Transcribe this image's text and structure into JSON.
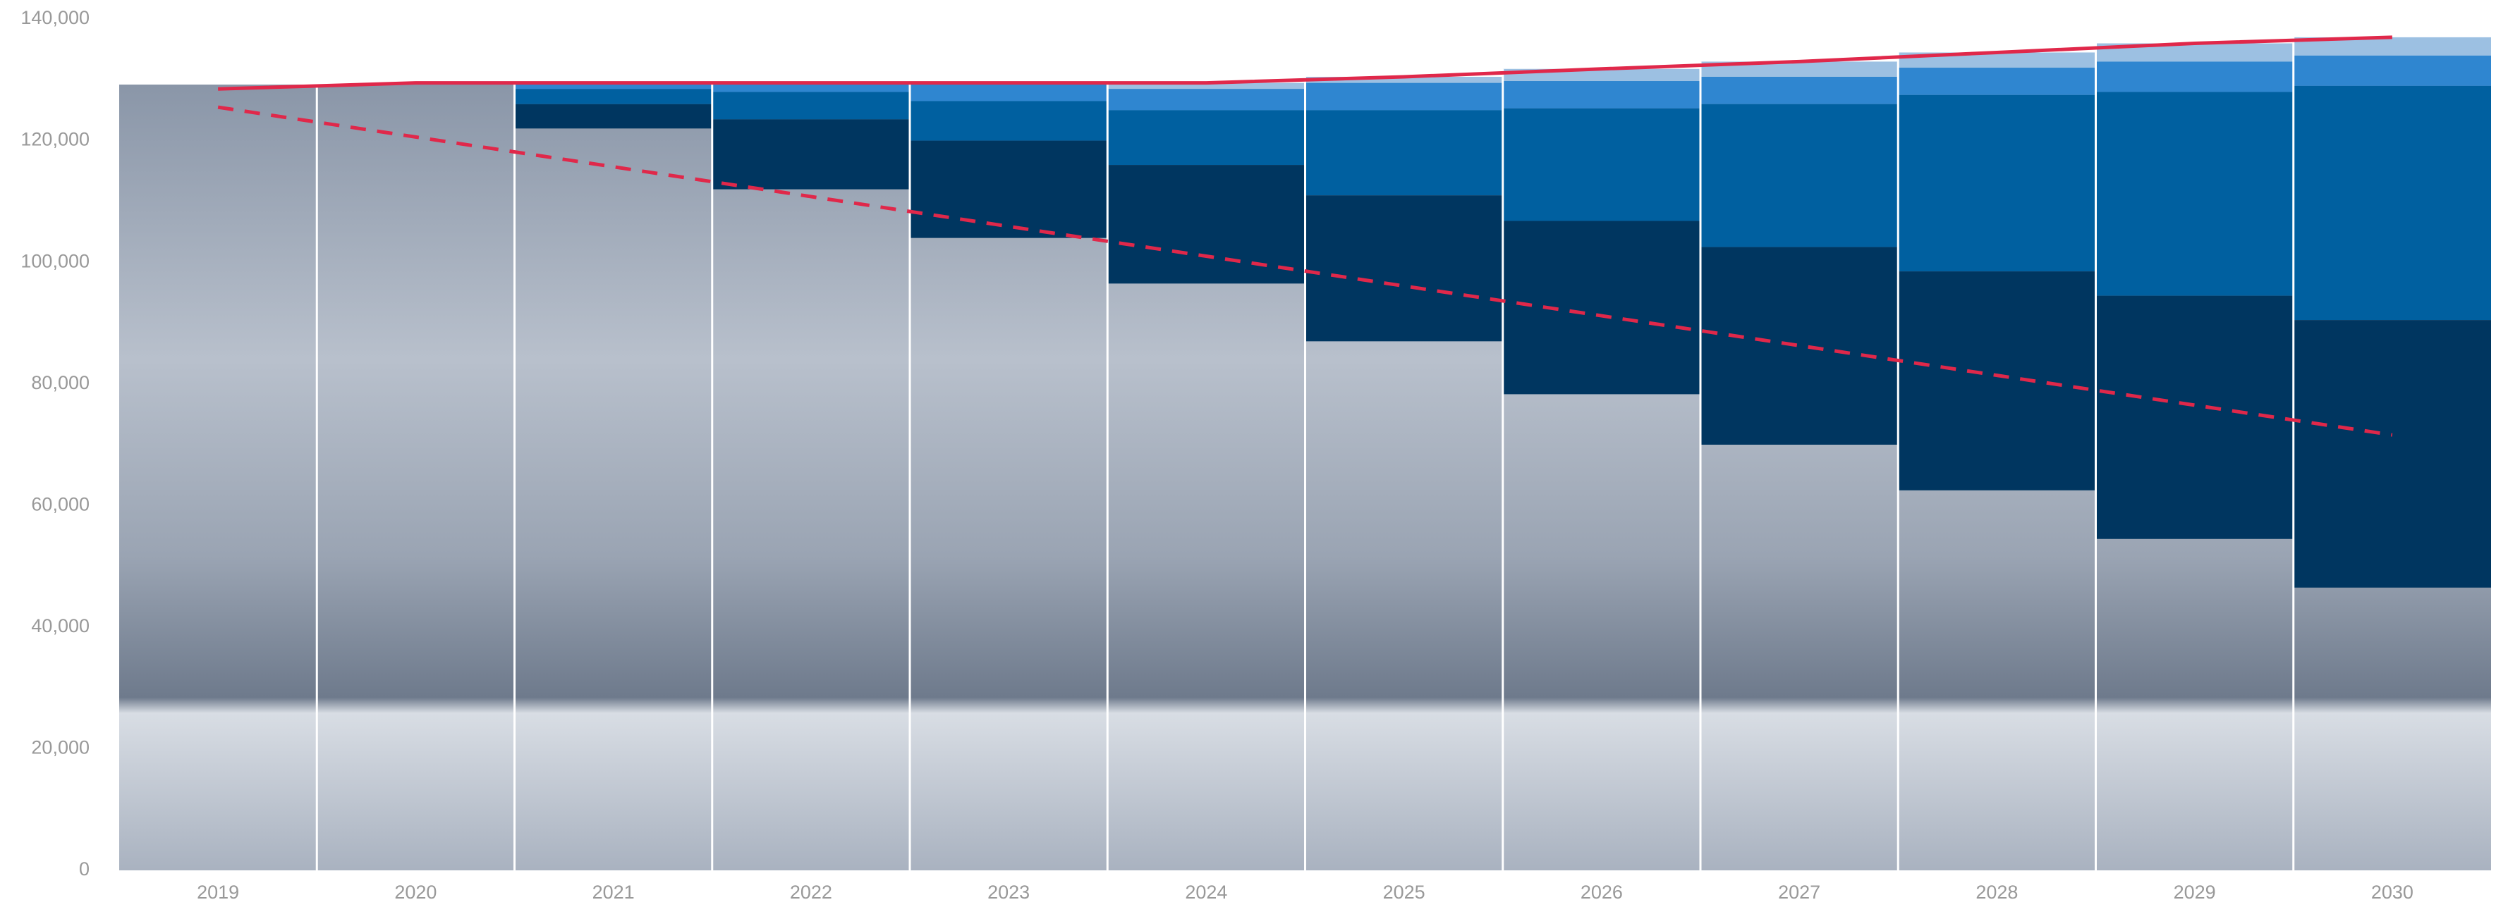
{
  "chart_data": {
    "type": "bar",
    "categories": [
      "2019",
      "2020",
      "2021",
      "2022",
      "2023",
      "2024",
      "2025",
      "2026",
      "2027",
      "2028",
      "2029",
      "2030"
    ],
    "series": [
      {
        "type": "bar",
        "color": "#9cc0e2",
        "values": [
          null,
          null,
          0,
          0.5,
          0.5,
          1000,
          1000,
          2000,
          2500,
          2500,
          3000,
          3000
        ]
      },
      {
        "type": "bar",
        "color": "#2f86d0",
        "values": [
          null,
          null,
          1000,
          1500,
          3000,
          3500,
          4500,
          4500,
          4500,
          4500,
          5000,
          5000
        ]
      },
      {
        "type": "bar",
        "color": "#0060a0",
        "values": [
          null,
          null,
          2500,
          4500,
          6500,
          9000,
          14000,
          18500,
          23500,
          29000,
          33500,
          38500
        ]
      },
      {
        "type": "bar",
        "color": "#003660",
        "values": [
          null,
          null,
          4000,
          11500,
          16000,
          19500,
          24000,
          28500,
          32500,
          36000,
          40000,
          44000
        ]
      },
      {
        "type": "line",
        "color": "#e0284a",
        "dash": false,
        "values": [
          128500,
          129500,
          129500,
          129500,
          129500,
          129500,
          130500,
          131800,
          133000,
          134500,
          136000,
          137000
        ]
      },
      {
        "type": "line",
        "color": "#e0284a",
        "dash": true,
        "values": [
          125500,
          120600,
          115700,
          110800,
          105900,
          101000,
          96100,
          91200,
          86300,
          81400,
          76500,
          71600
        ]
      }
    ],
    "ylim": [
      0,
      140000
    ],
    "yticks": [
      0,
      {
        "value": 20000,
        "label": "20,000"
      },
      {
        "value": 40000,
        "label": "40,000"
      },
      {
        "value": 60000,
        "label": "60,000"
      },
      {
        "value": 80000,
        "label": "80,000"
      },
      {
        "value": 100000,
        "label": "100,000"
      },
      {
        "value": 120000,
        "label": "120,000"
      },
      {
        "value": 140000,
        "label": "140,000"
      }
    ],
    "grid": false
  }
}
